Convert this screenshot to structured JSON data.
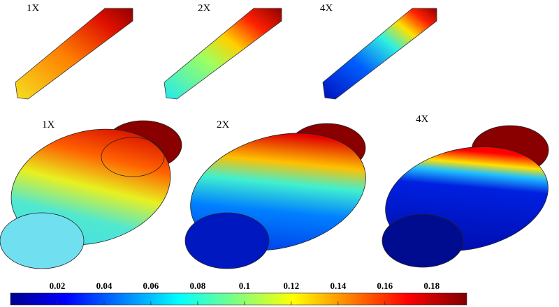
{
  "panels": {
    "top": [
      "1X",
      "2X",
      "4X"
    ],
    "bottom": [
      "1X",
      "2X",
      "4X"
    ]
  },
  "colorbar": {
    "range": [
      0,
      0.195
    ],
    "ticks": [
      0.02,
      0.04,
      0.06,
      0.08,
      0.1,
      0.12,
      0.14,
      0.16,
      0.18
    ]
  }
}
